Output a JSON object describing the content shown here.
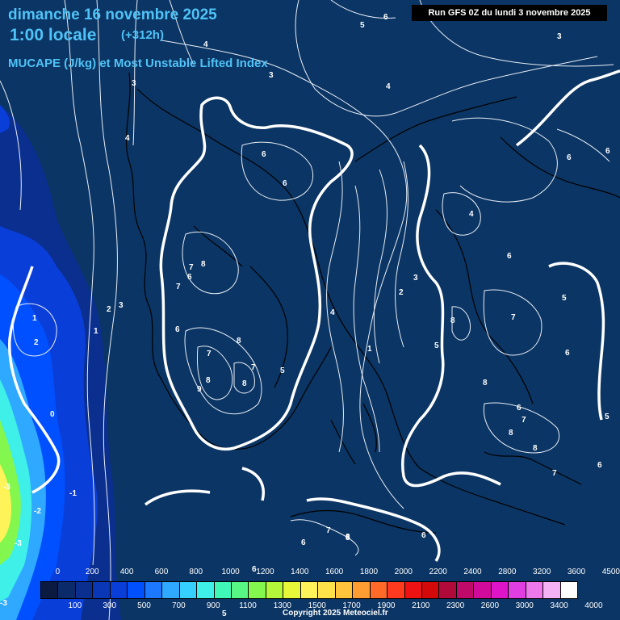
{
  "header": {
    "date": "dimanche 16 novembre 2025",
    "time": "1:00 locale",
    "offset": "(+312h)",
    "parameter": "MUCAPE (J/kg) et Most Unstable Lifted Index",
    "run": "Run GFS 0Z du lundi 3 novembre 2025"
  },
  "contour_labels": [
    "6",
    "5",
    "3",
    "4",
    "3",
    "3",
    "4",
    "4",
    "6",
    "6",
    "6",
    "6",
    "4",
    "6",
    "7",
    "8",
    "6",
    "7",
    "8",
    "7",
    "5",
    "8",
    "8",
    "9",
    "8",
    "7",
    "6",
    "4",
    "2",
    "3",
    "1",
    "5",
    "8",
    "7",
    "6",
    "8",
    "7",
    "6",
    "5",
    "8",
    "7",
    "8",
    "6",
    "5",
    "1",
    "2",
    "1",
    "2",
    "3",
    "0",
    "-1",
    "-2",
    "-3",
    "-3",
    "-3",
    "6",
    "7",
    "8",
    "6",
    "6",
    "5"
  ],
  "legend": {
    "top_ticks": [
      "0",
      "200",
      "400",
      "600",
      "800",
      "1000",
      "1200",
      "1400",
      "1600",
      "1800",
      "2000",
      "2200",
      "2400",
      "2800",
      "3200",
      "3600",
      "4500"
    ],
    "bottom_ticks": [
      "100",
      "300",
      "500",
      "700",
      "900",
      "1100",
      "1300",
      "1500",
      "1700",
      "1900",
      "2100",
      "2300",
      "2600",
      "3000",
      "3400",
      "4000"
    ],
    "colors": [
      "#0a1a40",
      "#0a2a6a",
      "#0a2f8f",
      "#0a37b5",
      "#0a3ed8",
      "#0050ff",
      "#1c79ff",
      "#2fa8ff",
      "#36d0ff",
      "#3ef0e8",
      "#3ff7b6",
      "#58f785",
      "#84f74e",
      "#b4f73a",
      "#e6f73a",
      "#fff35a",
      "#ffe14a",
      "#ffc43c",
      "#ff9d32",
      "#ff6a28",
      "#ff3a1e",
      "#ee1212",
      "#d40a0a",
      "#b00a3a",
      "#c00a6a",
      "#d00a9a",
      "#dd14c8",
      "#e03ee0",
      "#ec78ec",
      "#f4b2f4",
      "#ffffff"
    ]
  },
  "copyright": "Copyright 2025 Meteociel.fr"
}
